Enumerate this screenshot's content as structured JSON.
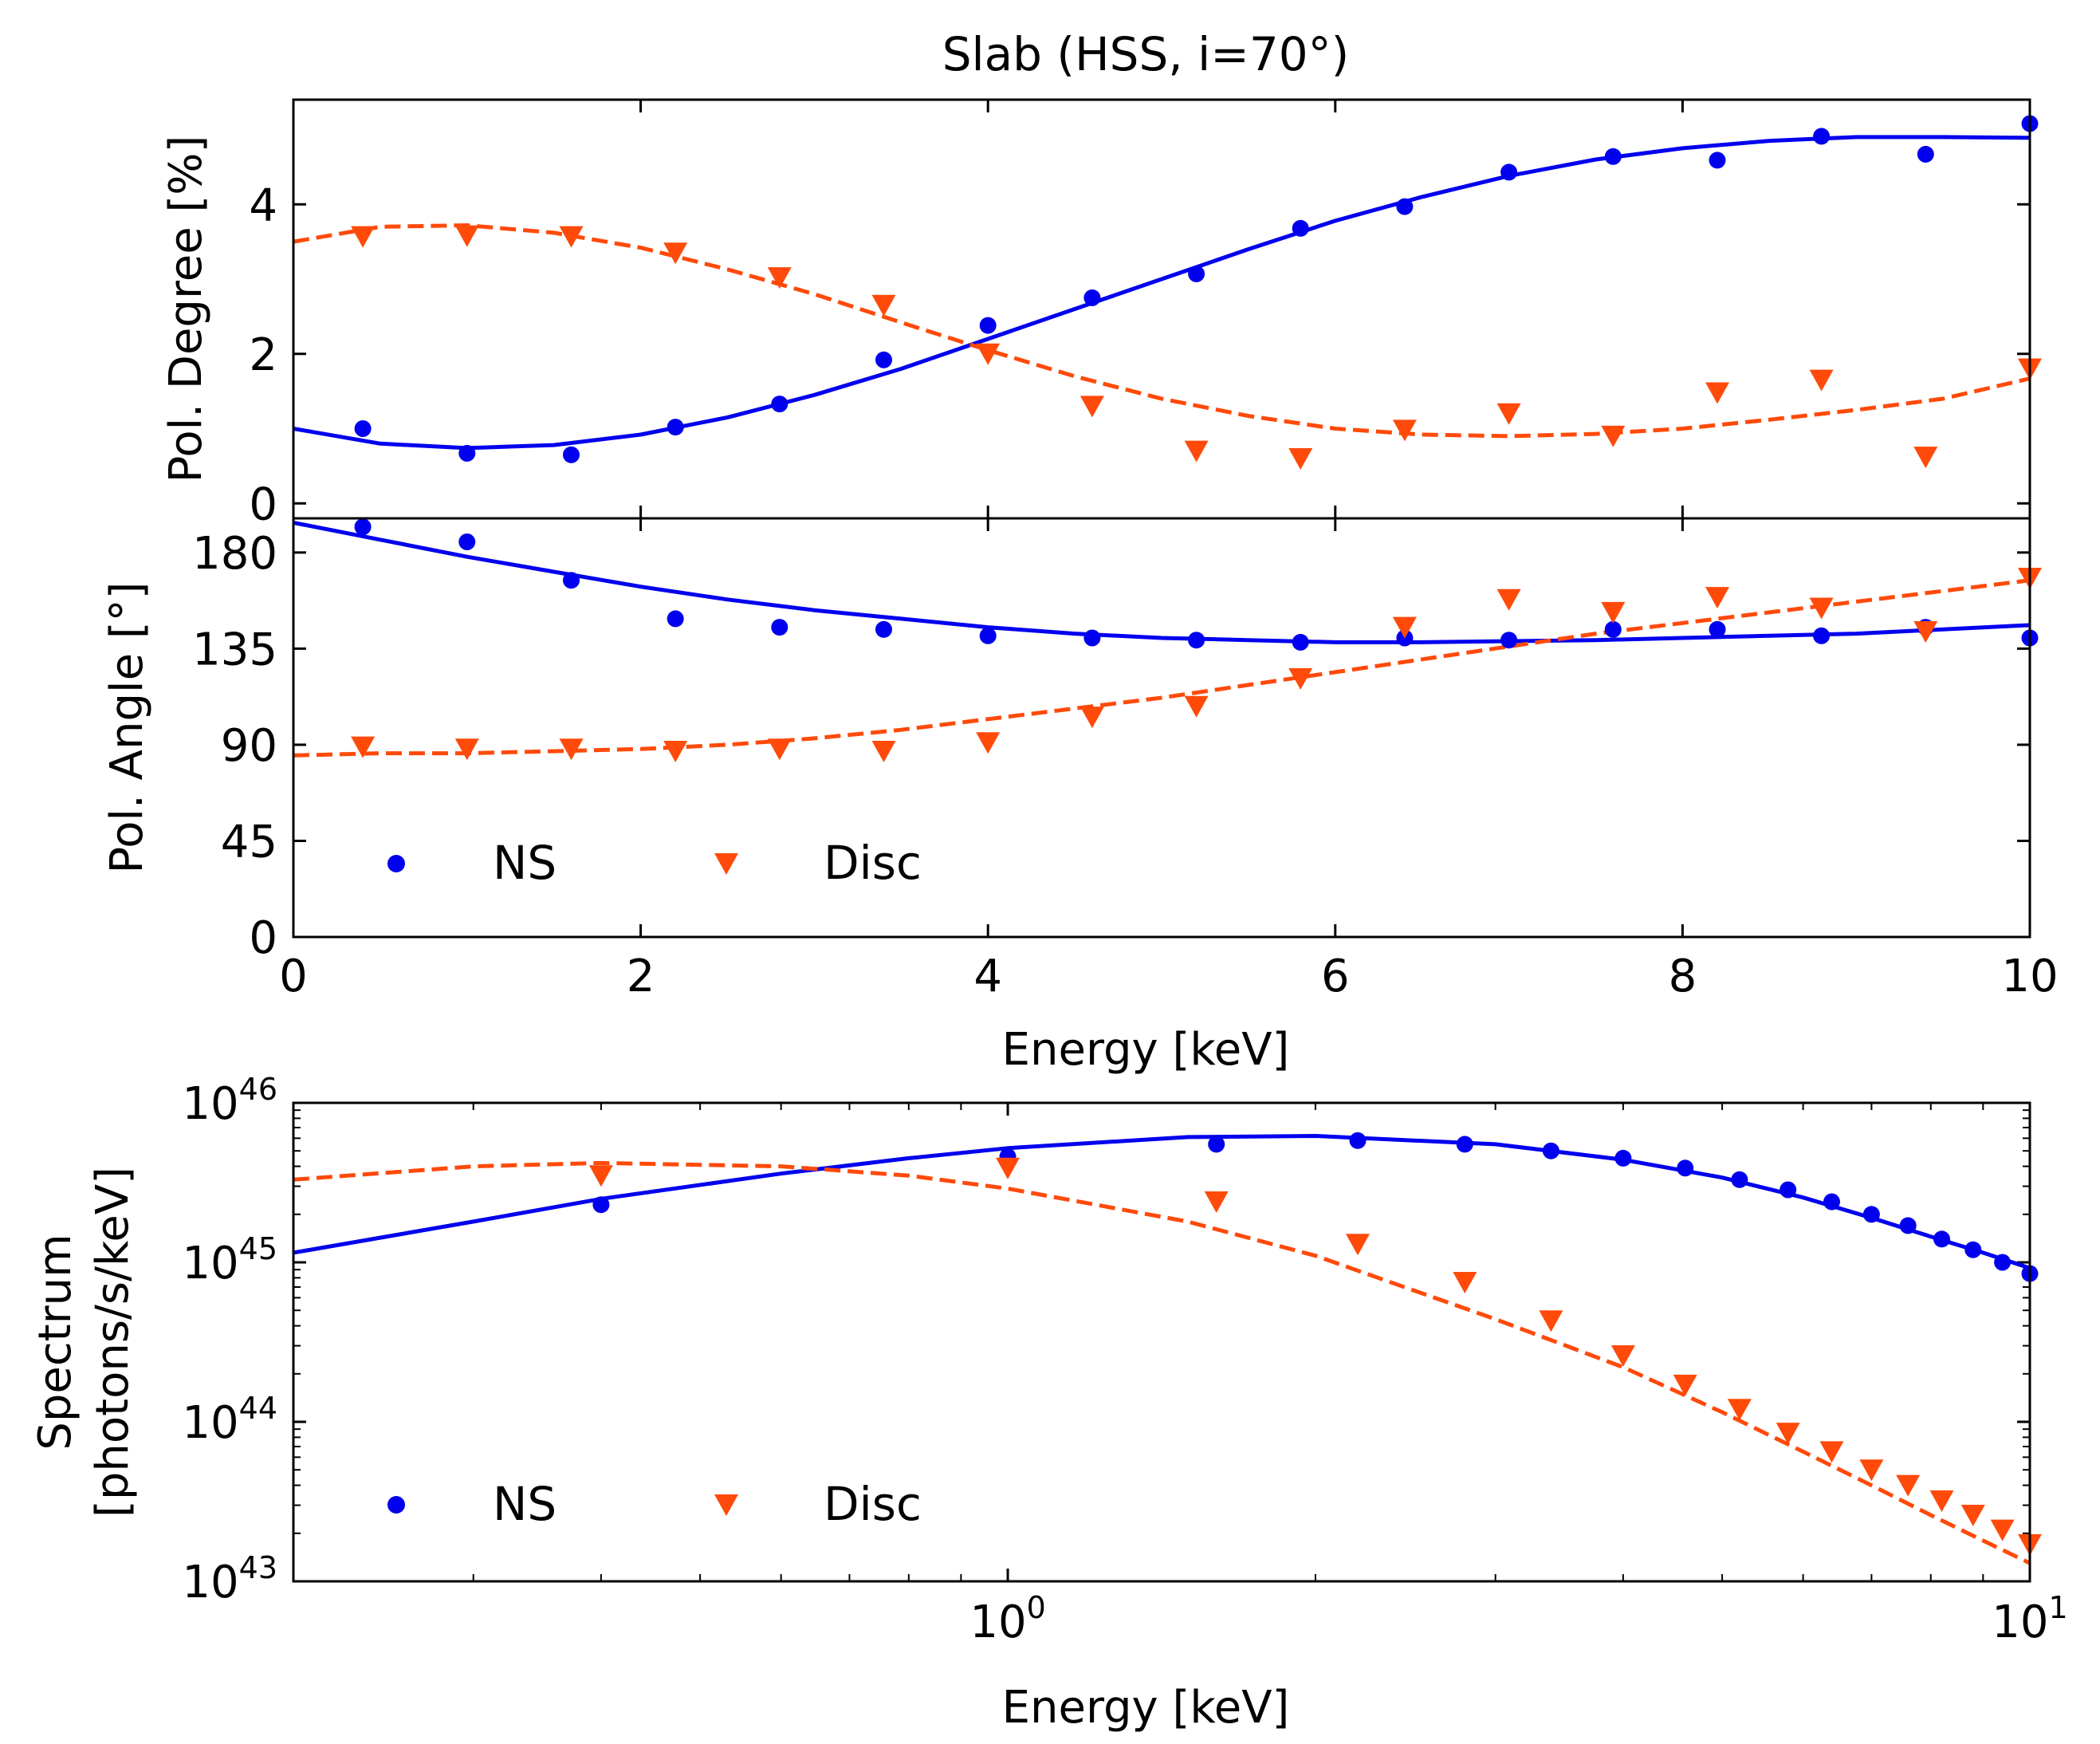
{
  "colors": {
    "ns": "#0000ee",
    "disc": "#ff4a0a",
    "axis": "#000000"
  },
  "figure": {
    "title": "Slab (HSS, i=70°)",
    "legend": {
      "ns_label": "NS",
      "disc_label": "Disc"
    },
    "xlabel_top": "Energy [keV]",
    "xlabel_bottom": "Energy [keV]"
  },
  "chart_data": [
    {
      "type": "scatter",
      "panel": "polarization-degree",
      "title": "Slab (HSS, i=70°)",
      "xlabel": "",
      "ylabel": "Pol. Degree [%]",
      "xlim": [
        0,
        10
      ],
      "ylim": [
        -0.2,
        5.4
      ],
      "yticks": [
        0,
        2,
        4
      ],
      "series": [
        {
          "name": "NS",
          "marker": "circle",
          "x": [
            0.4,
            1.0,
            1.6,
            2.2,
            2.8,
            3.4,
            4.0,
            4.6,
            5.2,
            5.8,
            6.4,
            7.0,
            7.6,
            8.2,
            8.8,
            9.4,
            10.0
          ],
          "y": [
            1.0,
            0.67,
            0.65,
            1.02,
            1.33,
            1.92,
            2.38,
            2.75,
            3.07,
            3.68,
            3.97,
            4.43,
            4.64,
            4.59,
            4.91,
            4.67,
            5.08
          ]
        },
        {
          "name": "Disc",
          "marker": "triangle",
          "x": [
            0.4,
            1.0,
            1.6,
            2.2,
            2.8,
            3.4,
            4.0,
            4.6,
            5.2,
            5.8,
            6.4,
            7.0,
            7.6,
            8.2,
            8.8,
            9.4,
            10.0
          ],
          "y": [
            3.57,
            3.58,
            3.57,
            3.35,
            3.02,
            2.65,
            2.0,
            1.3,
            0.7,
            0.6,
            0.98,
            1.2,
            0.9,
            1.48,
            1.65,
            0.62,
            1.8
          ]
        }
      ],
      "fits": [
        {
          "name": "NS fit",
          "style": "solid",
          "x": [
            0,
            0.5,
            1.0,
            1.5,
            2.0,
            2.5,
            3.0,
            3.5,
            4.0,
            4.5,
            5.0,
            5.5,
            6.0,
            6.5,
            7.0,
            7.5,
            8.0,
            8.5,
            9.0,
            9.5,
            10.0
          ],
          "y": [
            1.0,
            0.8,
            0.74,
            0.78,
            0.92,
            1.15,
            1.45,
            1.8,
            2.2,
            2.6,
            3.0,
            3.4,
            3.78,
            4.1,
            4.38,
            4.6,
            4.75,
            4.85,
            4.9,
            4.9,
            4.89
          ]
        },
        {
          "name": "Disc fit",
          "style": "dashed",
          "x": [
            0,
            0.5,
            1.0,
            1.5,
            2.0,
            2.5,
            3.0,
            3.5,
            4.0,
            4.5,
            5.0,
            5.5,
            6.0,
            6.5,
            7.0,
            7.5,
            8.0,
            8.5,
            9.0,
            9.5,
            10.0
          ],
          "y": [
            3.5,
            3.7,
            3.72,
            3.62,
            3.42,
            3.13,
            2.8,
            2.42,
            2.05,
            1.7,
            1.4,
            1.17,
            1.0,
            0.92,
            0.9,
            0.93,
            1.0,
            1.12,
            1.25,
            1.4,
            1.67
          ]
        }
      ]
    },
    {
      "type": "scatter",
      "panel": "polarization-angle",
      "title": "",
      "xlabel": "Energy [keV]",
      "ylabel": "Pol. Angle [°]",
      "xlim": [
        0,
        10
      ],
      "ylim": [
        0,
        196
      ],
      "xticks": [
        0,
        2,
        4,
        6,
        8,
        10
      ],
      "yticks": [
        0,
        45,
        90,
        135,
        180
      ],
      "legend": {
        "entries": [
          "NS",
          "Disc"
        ],
        "location": "lower-left"
      },
      "series": [
        {
          "name": "NS",
          "marker": "circle",
          "x": [
            0.4,
            1.0,
            1.6,
            2.2,
            2.8,
            3.4,
            4.0,
            4.6,
            5.2,
            5.8,
            6.4,
            7.0,
            7.6,
            8.2,
            8.8,
            9.4,
            10.0
          ],
          "y": [
            192,
            185,
            167,
            149,
            145,
            144,
            141,
            140,
            139,
            138,
            140,
            139,
            144,
            144,
            141,
            145,
            140
          ]
        },
        {
          "name": "Disc",
          "marker": "triangle",
          "x": [
            0.4,
            1.0,
            1.6,
            2.2,
            2.8,
            3.4,
            4.0,
            4.6,
            5.2,
            5.8,
            6.4,
            7.0,
            7.6,
            8.2,
            8.8,
            9.4,
            10.0
          ],
          "y": [
            89,
            88,
            88,
            87,
            88,
            87,
            91,
            103,
            108,
            121,
            145,
            158,
            152,
            159,
            154,
            143,
            168
          ]
        }
      ],
      "fits": [
        {
          "name": "NS fit",
          "style": "solid",
          "x": [
            0,
            0.5,
            1.0,
            1.5,
            2.0,
            2.5,
            3.0,
            3.5,
            4.0,
            4.5,
            5.0,
            5.5,
            6.0,
            6.5,
            7.0,
            7.5,
            8.0,
            8.5,
            9.0,
            9.5,
            10.0
          ],
          "y": [
            194,
            186,
            178,
            171,
            164,
            158,
            153,
            149,
            145,
            142,
            140,
            139,
            138,
            138,
            138.5,
            139,
            140,
            141,
            142,
            144,
            146
          ]
        },
        {
          "name": "Disc fit",
          "style": "dashed",
          "x": [
            0,
            0.5,
            1.0,
            1.5,
            2.0,
            2.5,
            3.0,
            3.5,
            4.0,
            4.5,
            5.0,
            5.5,
            6.0,
            6.5,
            7.0,
            7.5,
            8.0,
            8.5,
            9.0,
            9.5,
            10.0
          ],
          "y": [
            85,
            86,
            86,
            87,
            88,
            90,
            93,
            97,
            102,
            107,
            112,
            118,
            124,
            130,
            136,
            142,
            147,
            152,
            157,
            162,
            167
          ]
        }
      ]
    },
    {
      "type": "scatter",
      "panel": "spectrum",
      "title": "",
      "xlabel": "Energy [keV]",
      "ylabel": "Spectrum [photons/s/keV]",
      "ylabel_lines": [
        "Spectrum",
        "[photons/s/keV]"
      ],
      "xscale": "log",
      "yscale": "log",
      "xlim": [
        0.2,
        10
      ],
      "ylim": [
        1e+43,
        1e+46
      ],
      "xticks": [
        {
          "value": 1,
          "base": "10",
          "exp": "0"
        },
        {
          "value": 10,
          "base": "10",
          "exp": "1"
        }
      ],
      "yticks": [
        {
          "value": 1e+43,
          "base": "10",
          "exp": "43"
        },
        {
          "value": 1e+44,
          "base": "10",
          "exp": "44"
        },
        {
          "value": 1e+45,
          "base": "10",
          "exp": "45"
        },
        {
          "value": 1e+46,
          "base": "10",
          "exp": "46"
        }
      ],
      "legend": {
        "entries": [
          "NS",
          "Disc"
        ],
        "location": "lower-left"
      },
      "series": [
        {
          "name": "NS",
          "marker": "circle",
          "x": [
            0.4,
            1.0,
            1.6,
            2.2,
            2.8,
            3.4,
            4.0,
            4.6,
            5.2,
            5.8,
            6.4,
            7.0,
            7.6,
            8.2,
            8.8,
            9.4,
            10.0
          ],
          "y": [
            2.3e+45,
            4.6e+45,
            5.5e+45,
            5.8e+45,
            5.5e+45,
            5e+45,
            4.5e+45,
            3.9e+45,
            3.3e+45,
            2.85e+45,
            2.4e+45,
            2e+45,
            1.7e+45,
            1.4e+45,
            1.2e+45,
            1e+45,
            8.5e+44
          ]
        },
        {
          "name": "Disc",
          "marker": "triangle",
          "x": [
            0.4,
            1.0,
            1.6,
            2.2,
            2.8,
            3.4,
            4.0,
            4.6,
            5.2,
            5.8,
            6.4,
            7.0,
            7.6,
            8.2,
            8.8,
            9.4,
            10.0
          ],
          "y": [
            3.5e+45,
            3.9e+45,
            2.4e+45,
            1.3e+45,
            7.5e+44,
            4.3e+44,
            2.6e+44,
            1.7e+44,
            1.2e+44,
            8.5e+43,
            6.5e+43,
            5e+43,
            4e+43,
            3.2e+43,
            2.6e+43,
            2.1e+43,
            1.7e+43
          ]
        }
      ],
      "fits": [
        {
          "name": "NS fit",
          "style": "solid",
          "x": [
            0.2,
            0.3,
            0.4,
            0.6,
            0.8,
            1.0,
            1.5,
            2.0,
            3.0,
            4.0,
            5.0,
            6.0,
            7.0,
            8.0,
            9.0,
            10.0
          ],
          "y": [
            1.15e+45,
            1.8e+45,
            2.5e+45,
            3.6e+45,
            4.5e+45,
            5.2e+45,
            6.1e+45,
            6.2e+45,
            5.5e+45,
            4.4e+45,
            3.4e+45,
            2.55e+45,
            1.9e+45,
            1.45e+45,
            1.15e+45,
            9.2e+44
          ]
        },
        {
          "name": "Disc fit",
          "style": "dashed",
          "x": [
            0.2,
            0.3,
            0.4,
            0.6,
            0.8,
            1.0,
            1.5,
            2.0,
            3.0,
            4.0,
            5.0,
            6.0,
            7.0,
            8.0,
            9.0,
            10.0
          ],
          "y": [
            3.3e+45,
            4e+45,
            4.2e+45,
            4e+45,
            3.5e+45,
            2.9e+45,
            1.8e+45,
            1.1e+45,
            4.4e+44,
            2.2e+44,
            1.15e+44,
            6.5e+43,
            4e+43,
            2.6e+43,
            1.8e+43,
            1.3e+43
          ]
        }
      ]
    }
  ]
}
